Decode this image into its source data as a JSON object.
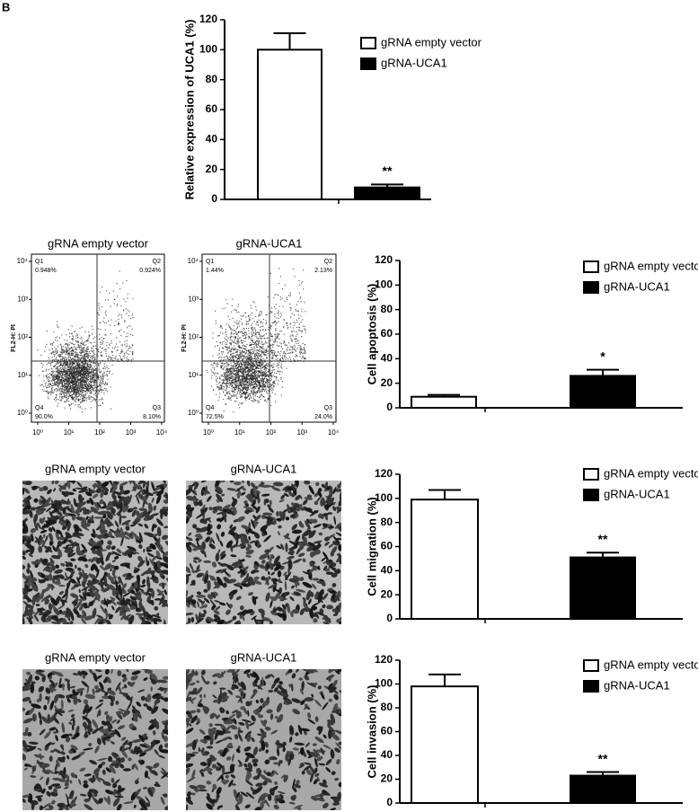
{
  "panel_label": "B",
  "chart_data": [
    {
      "type": "bar",
      "ylabel": "Relative expression of UCA1 (%)",
      "ylim": [
        0,
        120
      ],
      "yticks": [
        0,
        20,
        40,
        60,
        80,
        100,
        120
      ],
      "series": [
        {
          "name": "gRNA empty vector",
          "color": "#ffffff",
          "values": [
            100
          ],
          "errors": [
            11
          ]
        },
        {
          "name": "gRNA-UCA1",
          "color": "#000000",
          "values": [
            8
          ],
          "errors": [
            2
          ]
        }
      ],
      "annotations": [
        {
          "text": "**"
        }
      ]
    },
    {
      "type": "bar",
      "ylabel": "Cell apoptosis (%)",
      "ylim": [
        0,
        120
      ],
      "yticks": [
        0,
        20,
        40,
        60,
        80,
        100,
        120
      ],
      "series": [
        {
          "name": "gRNA empty vector",
          "color": "#ffffff",
          "values": [
            9
          ],
          "errors": [
            1.5
          ]
        },
        {
          "name": "gRNA-UCA1",
          "color": "#000000",
          "values": [
            26
          ],
          "errors": [
            5
          ]
        }
      ],
      "annotations": [
        {
          "text": "*"
        }
      ]
    },
    {
      "type": "bar",
      "ylabel": "Cell migration (%)",
      "ylim": [
        0,
        120
      ],
      "yticks": [
        0,
        20,
        40,
        60,
        80,
        100,
        120
      ],
      "series": [
        {
          "name": "gRNA empty vector",
          "color": "#ffffff",
          "values": [
            99
          ],
          "errors": [
            8
          ]
        },
        {
          "name": "gRNA-UCA1",
          "color": "#000000",
          "values": [
            51
          ],
          "errors": [
            4
          ]
        }
      ],
      "annotations": [
        {
          "text": "**"
        }
      ]
    },
    {
      "type": "bar",
      "ylabel": "Cell invasion (%)",
      "ylim": [
        0,
        120
      ],
      "yticks": [
        0,
        20,
        40,
        60,
        80,
        100,
        120
      ],
      "series": [
        {
          "name": "gRNA empty vector",
          "color": "#ffffff",
          "values": [
            98
          ],
          "errors": [
            10
          ]
        },
        {
          "name": "gRNA-UCA1",
          "color": "#000000",
          "values": [
            23
          ],
          "errors": [
            3
          ]
        }
      ],
      "annotations": [
        {
          "text": "**"
        }
      ]
    }
  ],
  "flow_plots": [
    {
      "title": "gRNA empty vector",
      "ylabel": "FL2-H: PI",
      "ticks": [
        {
          "value": 0,
          "label": "10⁰"
        },
        {
          "value": 1,
          "label": "10¹"
        },
        {
          "value": 2,
          "label": "10²"
        },
        {
          "value": 3,
          "label": "10³"
        },
        {
          "value": 4,
          "label": "10⁴"
        }
      ],
      "quadrants": [
        {
          "name": "Q1",
          "value": "0.948%"
        },
        {
          "name": "Q2",
          "value": "0.924%"
        },
        {
          "name": "Q3",
          "value": "8.10%"
        },
        {
          "name": "Q4",
          "value": "90.0%"
        }
      ]
    },
    {
      "title": "gRNA-UCA1",
      "ylabel": "FL2-H: PI",
      "ticks": [
        {
          "value": 0,
          "label": "10⁰"
        },
        {
          "value": 1,
          "label": "10¹"
        },
        {
          "value": 2,
          "label": "10²"
        },
        {
          "value": 3,
          "label": "10³"
        },
        {
          "value": 4,
          "label": "10⁴"
        }
      ],
      "quadrants": [
        {
          "name": "Q1",
          "value": "1.44%"
        },
        {
          "name": "Q2",
          "value": "2.13%"
        },
        {
          "name": "Q3",
          "value": "24.0%"
        },
        {
          "name": "Q4",
          "value": "72.5%"
        }
      ]
    }
  ],
  "micrographs": [
    {
      "title": "gRNA empty vector"
    },
    {
      "title": "gRNA-UCA1"
    },
    {
      "title": "gRNA empty vector"
    },
    {
      "title": "gRNA-UCA1"
    }
  ]
}
